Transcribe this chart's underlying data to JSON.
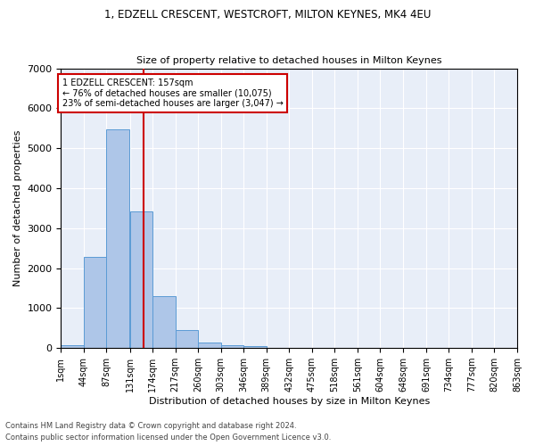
{
  "title1": "1, EDZELL CRESCENT, WESTCROFT, MILTON KEYNES, MK4 4EU",
  "title2": "Size of property relative to detached houses in Milton Keynes",
  "xlabel": "Distribution of detached houses by size in Milton Keynes",
  "ylabel": "Number of detached properties",
  "bar_values": [
    75,
    2280,
    5480,
    3430,
    1310,
    460,
    150,
    80,
    45,
    0,
    0,
    0,
    0,
    0,
    0,
    0,
    0,
    0,
    0,
    0
  ],
  "bin_edges": [
    1,
    44,
    87,
    131,
    174,
    217,
    260,
    303,
    346,
    389,
    432,
    475,
    518,
    561,
    604,
    648,
    691,
    734,
    777,
    820,
    863
  ],
  "tick_labels": [
    "1sqm",
    "44sqm",
    "87sqm",
    "131sqm",
    "174sqm",
    "217sqm",
    "260sqm",
    "303sqm",
    "346sqm",
    "389sqm",
    "432sqm",
    "475sqm",
    "518sqm",
    "561sqm",
    "604sqm",
    "648sqm",
    "691sqm",
    "734sqm",
    "777sqm",
    "820sqm",
    "863sqm"
  ],
  "bar_color": "#aec6e8",
  "bar_edge_color": "#5b9bd5",
  "vline_x": 157,
  "vline_color": "#cc0000",
  "ylim": [
    0,
    7000
  ],
  "yticks": [
    0,
    1000,
    2000,
    3000,
    4000,
    5000,
    6000,
    7000
  ],
  "annotation_text": "1 EDZELL CRESCENT: 157sqm\n← 76% of detached houses are smaller (10,075)\n23% of semi-detached houses are larger (3,047) →",
  "annotation_box_color": "#ffffff",
  "annotation_border_color": "#cc0000",
  "footnote1": "Contains HM Land Registry data © Crown copyright and database right 2024.",
  "footnote2": "Contains public sector information licensed under the Open Government Licence v3.0.",
  "bg_color": "#e8eef8",
  "fig_bg_color": "#ffffff",
  "grid_color": "#ffffff"
}
